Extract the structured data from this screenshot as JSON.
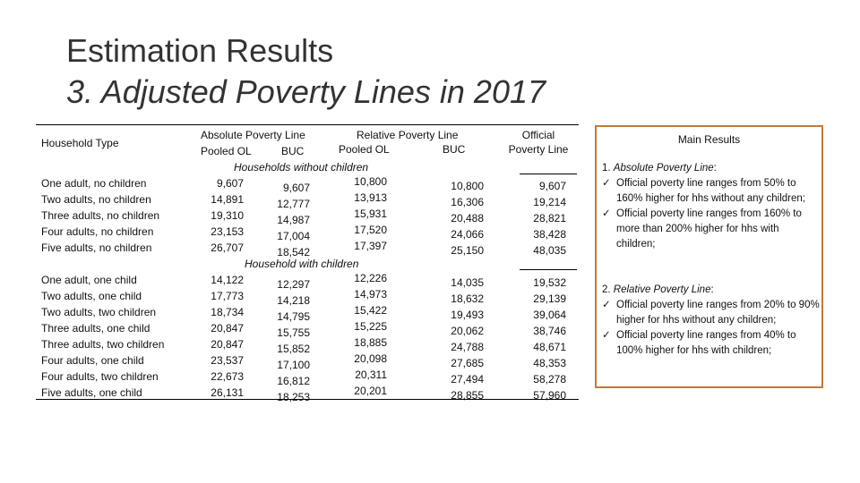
{
  "title": "Estimation Results",
  "subtitle": "3. Adjusted Poverty Lines in 2017",
  "table": {
    "header": {
      "household_type": "Household Type",
      "absolute": "Absolute Poverty Line",
      "relative": "Relative Poverty Line",
      "official_1": "Official",
      "official_2": "Poverty Line",
      "pooled_abs": "Pooled OL",
      "buc_abs": "BUC",
      "pooled_rel": "Pooled OL",
      "buc_rel": "BUC"
    },
    "section1": "Households without children",
    "section2": "Household with children",
    "rows1": [
      {
        "type": "One adult, no children",
        "abs_pooled": "9,607",
        "abs_buc": "9,607",
        "rel_pooled": "10,800",
        "rel_buc": "10,800",
        "official": "9,607"
      },
      {
        "type": "Two adults, no children",
        "abs_pooled": "14,891",
        "abs_buc": "12,777",
        "rel_pooled": "13,913",
        "rel_buc": "16,306",
        "official": "19,214"
      },
      {
        "type": "Three adults, no children",
        "abs_pooled": "19,310",
        "abs_buc": "14,987",
        "rel_pooled": "15,931",
        "rel_buc": "20,488",
        "official": "28,821"
      },
      {
        "type": "Four adults, no children",
        "abs_pooled": "23,153",
        "abs_buc": "17,004",
        "rel_pooled": "17,520",
        "rel_buc": "24,066",
        "official": "38,428"
      },
      {
        "type": "Five adults, no children",
        "abs_pooled": "26,707",
        "abs_buc": "18,542",
        "rel_pooled": "17,397",
        "rel_buc": "25,150",
        "official": "48,035"
      }
    ],
    "rows2": [
      {
        "type": "One adult, one child",
        "abs_pooled": "14,122",
        "abs_buc": "12,297",
        "rel_pooled": "12,226",
        "rel_buc": "14,035",
        "official": "19,532"
      },
      {
        "type": "Two adults, one child",
        "abs_pooled": "17,773",
        "abs_buc": "14,218",
        "rel_pooled": "14,973",
        "rel_buc": "18,632",
        "official": "29,139"
      },
      {
        "type": "Two adults, two children",
        "abs_pooled": "18,734",
        "abs_buc": "14,795",
        "rel_pooled": "15,422",
        "rel_buc": "19,493",
        "official": "39,064"
      },
      {
        "type": "Three adults, one child",
        "abs_pooled": "20,847",
        "abs_buc": "15,755",
        "rel_pooled": "15,225",
        "rel_buc": "20,062",
        "official": "38,746"
      },
      {
        "type": "Three adults, two children",
        "abs_pooled": "20,847",
        "abs_buc": "15,852",
        "rel_pooled": "18,885",
        "rel_buc": "24,788",
        "official": "48,671"
      },
      {
        "type": "Four adults, one child",
        "abs_pooled": "23,537",
        "abs_buc": "17,100",
        "rel_pooled": "20,098",
        "rel_buc": "27,685",
        "official": "48,353"
      },
      {
        "type": "Four adults, two children",
        "abs_pooled": "22,673",
        "abs_buc": "16,812",
        "rel_pooled": "20,311",
        "rel_buc": "27,494",
        "official": "58,278"
      },
      {
        "type": "Five adults, one child",
        "abs_pooled": "26,131",
        "abs_buc": "18,253",
        "rel_pooled": "20,201",
        "rel_buc": "28,855",
        "official": "57,960"
      }
    ]
  },
  "main_results": {
    "title": "Main Results",
    "check_glyph": "✓",
    "absolute_heading_num": "1.",
    "absolute_heading": "Absolute Poverty Line",
    "absolute_colon": ":",
    "absolute_bullets": [
      "Official poverty line ranges from 50% to 160% higher for hhs without any children;",
      "Official poverty line ranges from 160% to more than 200% higher for hhs with children;"
    ],
    "relative_heading_num": "2.",
    "relative_heading": "Relative Poverty Line",
    "relative_colon": ":",
    "relative_bullets": [
      "Official poverty line ranges from 20% to 90% higher for hhs without any children;",
      "Official poverty line ranges from 40% to 100% higher for hhs with children;"
    ]
  }
}
